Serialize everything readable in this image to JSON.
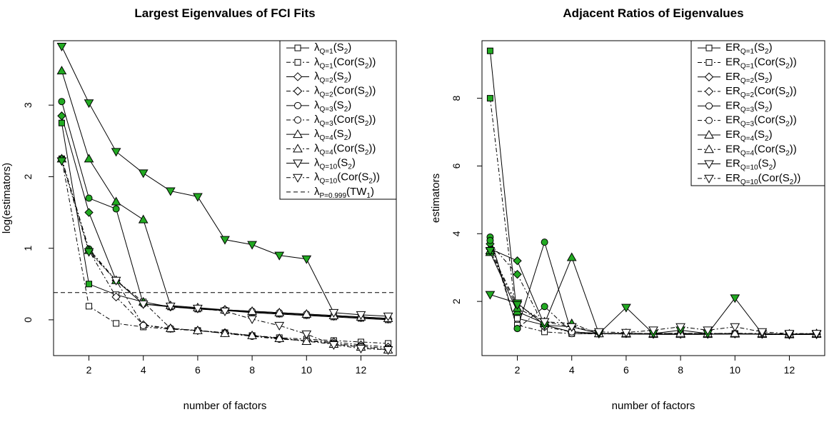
{
  "chart_data": [
    {
      "type": "line",
      "title": "Largest Eigenvalues of FCI Fits",
      "xlabel": "number of factors",
      "ylabel": "log(estimators)",
      "xlim": [
        0.7,
        13.3
      ],
      "ylim": [
        -0.5,
        3.9
      ],
      "xticks": [
        2,
        4,
        6,
        8,
        10,
        12
      ],
      "yticks": [
        0,
        1,
        2,
        3
      ],
      "threshold": {
        "y": 0.38,
        "label": {
          "main": "λ",
          "sub": "P=0.999",
          "rest": "(TW",
          "sub2": "1",
          "end": ")"
        }
      },
      "x": [
        1,
        2,
        3,
        4,
        5,
        6,
        7,
        8,
        9,
        10,
        11,
        12,
        13
      ],
      "series": [
        {
          "label": {
            "main": "λ",
            "sub": "Q=1",
            "rest": "(S",
            "sub2": "2",
            "end": ")"
          },
          "marker": "square",
          "dash": "solid",
          "green_upto": 2,
          "values": [
            2.75,
            0.5,
            0.35,
            0.25,
            0.18,
            0.15,
            0.13,
            0.1,
            0.08,
            0.06,
            0.04,
            0.02,
            0.0
          ]
        },
        {
          "label": {
            "main": "λ",
            "sub": "Q=1",
            "rest": "(Cor(S",
            "sub2": "2",
            "end": "))"
          },
          "marker": "square",
          "dash": "dashdot",
          "green_upto": 1,
          "values": [
            2.25,
            0.19,
            -0.05,
            -0.1,
            -0.13,
            -0.15,
            -0.18,
            -0.22,
            -0.25,
            -0.27,
            -0.29,
            -0.31,
            -0.33
          ]
        },
        {
          "label": {
            "main": "λ",
            "sub": "Q=2",
            "rest": "(S",
            "sub2": "2",
            "end": ")"
          },
          "marker": "diamond",
          "dash": "solid",
          "green_upto": 3,
          "values": [
            2.85,
            1.5,
            0.55,
            0.22,
            0.18,
            0.16,
            0.13,
            0.11,
            0.09,
            0.07,
            0.05,
            0.03,
            0.01
          ]
        },
        {
          "label": {
            "main": "λ",
            "sub": "Q=2",
            "rest": "(Cor(S",
            "sub2": "2",
            "end": "))"
          },
          "marker": "diamond",
          "dash": "dashdot",
          "green_upto": 2,
          "values": [
            2.25,
            0.97,
            0.32,
            -0.07,
            -0.12,
            -0.15,
            -0.18,
            -0.22,
            -0.26,
            -0.29,
            -0.31,
            -0.35,
            -0.38
          ]
        },
        {
          "label": {
            "main": "λ",
            "sub": "Q=3",
            "rest": "(S",
            "sub2": "2",
            "end": ")"
          },
          "marker": "circle",
          "dash": "solid",
          "green_upto": 3,
          "values": [
            3.05,
            1.7,
            1.55,
            0.22,
            0.19,
            0.16,
            0.14,
            0.12,
            0.1,
            0.08,
            0.06,
            0.04,
            0.02
          ]
        },
        {
          "label": {
            "main": "λ",
            "sub": "Q=3",
            "rest": "(Cor(S",
            "sub2": "2",
            "end": "))"
          },
          "marker": "circle",
          "dash": "dashdot",
          "green_upto": 3,
          "values": [
            2.25,
            0.99,
            0.55,
            -0.08,
            -0.12,
            -0.15,
            -0.19,
            -0.23,
            -0.27,
            -0.29,
            -0.33,
            -0.37,
            -0.4
          ]
        },
        {
          "label": {
            "main": "λ",
            "sub": "Q=4",
            "rest": "(S",
            "sub2": "2",
            "end": ")"
          },
          "marker": "triangle-up",
          "dash": "solid",
          "green_upto": 4,
          "values": [
            3.48,
            2.25,
            1.65,
            1.4,
            0.2,
            0.17,
            0.14,
            0.12,
            0.1,
            0.08,
            0.06,
            0.04,
            0.02
          ]
        },
        {
          "label": {
            "main": "λ",
            "sub": "Q=4",
            "rest": "(Cor(S",
            "sub2": "2",
            "end": "))"
          },
          "marker": "triangle-up",
          "dash": "dashdot",
          "green_upto": 4,
          "values": [
            2.25,
            0.97,
            0.55,
            0.25,
            -0.12,
            -0.15,
            -0.19,
            -0.22,
            -0.26,
            -0.3,
            -0.34,
            -0.38,
            -0.42
          ]
        },
        {
          "label": {
            "main": "λ",
            "sub": "Q=10",
            "rest": "(S",
            "sub2": "2",
            "end": ")"
          },
          "marker": "triangle-down",
          "dash": "solid",
          "green_upto": 10,
          "values": [
            3.82,
            3.03,
            2.35,
            2.05,
            1.8,
            1.72,
            1.12,
            1.05,
            0.9,
            0.85,
            0.1,
            0.07,
            0.05
          ]
        },
        {
          "label": {
            "main": "λ",
            "sub": "Q=10",
            "rest": "(Cor(S",
            "sub2": "2",
            "end": "))"
          },
          "marker": "triangle-down",
          "dash": "dashdot",
          "green_upto": 2,
          "values": [
            2.22,
            0.95,
            0.55,
            0.22,
            0.19,
            0.16,
            0.12,
            0.01,
            -0.08,
            -0.2,
            -0.35,
            -0.4,
            -0.42
          ]
        }
      ]
    },
    {
      "type": "line",
      "title": "Adjacent Ratios of Eigenvalues",
      "xlabel": "number of factors",
      "ylabel": "estimators",
      "xlim": [
        0.7,
        13.3
      ],
      "ylim": [
        0.4,
        9.7
      ],
      "xticks": [
        2,
        4,
        6,
        8,
        10,
        12
      ],
      "yticks": [
        2,
        4,
        6,
        8
      ],
      "x": [
        1,
        2,
        3,
        4,
        5,
        6,
        7,
        8,
        9,
        10,
        11,
        12,
        13
      ],
      "series": [
        {
          "label": {
            "main": "ER",
            "sub": "Q=1",
            "rest": "(S",
            "sub2": "2",
            "end": ")"
          },
          "marker": "square",
          "dash": "solid",
          "green_upto": 1,
          "values": [
            9.4,
            1.5,
            1.3,
            1.1,
            1.05,
            1.05,
            1.03,
            1.03,
            1.03,
            1.05,
            1.03,
            1.02,
            1.04
          ]
        },
        {
          "label": {
            "main": "ER",
            "sub": "Q=1",
            "rest": "(Cor(S",
            "sub2": "2",
            "end": "))"
          },
          "marker": "square",
          "dash": "dashdot",
          "green_upto": 1,
          "values": [
            8.0,
            1.3,
            1.1,
            1.05,
            1.04,
            1.04,
            1.03,
            1.05,
            1.05,
            1.05,
            1.04,
            1.03,
            1.05
          ]
        },
        {
          "label": {
            "main": "ER",
            "sub": "Q=2",
            "rest": "(S",
            "sub2": "2",
            "end": ")"
          },
          "marker": "diamond",
          "dash": "solid",
          "green_upto": 2,
          "values": [
            3.55,
            3.2,
            1.3,
            1.1,
            1.05,
            1.05,
            1.03,
            1.03,
            1.03,
            1.04,
            1.03,
            1.02,
            1.03
          ]
        },
        {
          "label": {
            "main": "ER",
            "sub": "Q=2",
            "rest": "(Cor(S",
            "sub2": "2",
            "end": "))"
          },
          "marker": "diamond",
          "dash": "dashdot",
          "green_upto": 2,
          "values": [
            3.7,
            2.8,
            1.25,
            1.1,
            1.05,
            1.05,
            1.05,
            1.05,
            1.05,
            1.05,
            1.04,
            1.03,
            1.04
          ]
        },
        {
          "label": {
            "main": "ER",
            "sub": "Q=3",
            "rest": "(S",
            "sub2": "2",
            "end": ")"
          },
          "marker": "circle",
          "dash": "solid",
          "green_upto": 3,
          "values": [
            3.9,
            1.2,
            3.75,
            1.05,
            1.05,
            1.04,
            1.03,
            1.03,
            1.03,
            1.04,
            1.03,
            1.02,
            1.03
          ]
        },
        {
          "label": {
            "main": "ER",
            "sub": "Q=3",
            "rest": "(Cor(S",
            "sub2": "2",
            "end": "))"
          },
          "marker": "circle",
          "dash": "dashdot",
          "green_upto": 3,
          "values": [
            3.8,
            1.2,
            1.85,
            1.1,
            1.05,
            1.05,
            1.05,
            1.05,
            1.04,
            1.05,
            1.04,
            1.03,
            1.04
          ]
        },
        {
          "label": {
            "main": "ER",
            "sub": "Q=4",
            "rest": "(S",
            "sub2": "2",
            "end": ")"
          },
          "marker": "triangle-up",
          "dash": "solid",
          "green_upto": 4,
          "values": [
            3.45,
            1.7,
            1.35,
            3.3,
            1.05,
            1.04,
            1.03,
            1.03,
            1.03,
            1.04,
            1.03,
            1.02,
            1.03
          ]
        },
        {
          "label": {
            "main": "ER",
            "sub": "Q=4",
            "rest": "(Cor(S",
            "sub2": "2",
            "end": "))"
          },
          "marker": "triangle-up",
          "dash": "dashdot",
          "green_upto": 4,
          "values": [
            3.5,
            1.8,
            1.4,
            1.35,
            1.05,
            1.06,
            1.05,
            1.06,
            1.05,
            1.06,
            1.05,
            1.04,
            1.05
          ]
        },
        {
          "label": {
            "main": "ER",
            "sub": "Q=10",
            "rest": "(S",
            "sub2": "2",
            "end": ")"
          },
          "marker": "triangle-down",
          "dash": "solid",
          "green_upto": 10,
          "values": [
            2.2,
            1.95,
            1.3,
            1.25,
            1.05,
            1.82,
            1.05,
            1.15,
            1.05,
            2.1,
            1.05,
            1.02,
            1.03
          ]
        },
        {
          "label": {
            "main": "ER",
            "sub": "Q=10",
            "rest": "(Cor(S",
            "sub2": "2",
            "end": "))"
          },
          "marker": "triangle-down",
          "dash": "dashdot",
          "green_upto": 2,
          "values": [
            3.5,
            1.9,
            1.4,
            1.25,
            1.1,
            1.08,
            1.15,
            1.25,
            1.15,
            1.25,
            1.1,
            1.05,
            1.05
          ]
        }
      ]
    }
  ],
  "colors": {
    "marker_fill": "#22aa22",
    "line": "#000000",
    "open_fill": "#ffffff"
  }
}
